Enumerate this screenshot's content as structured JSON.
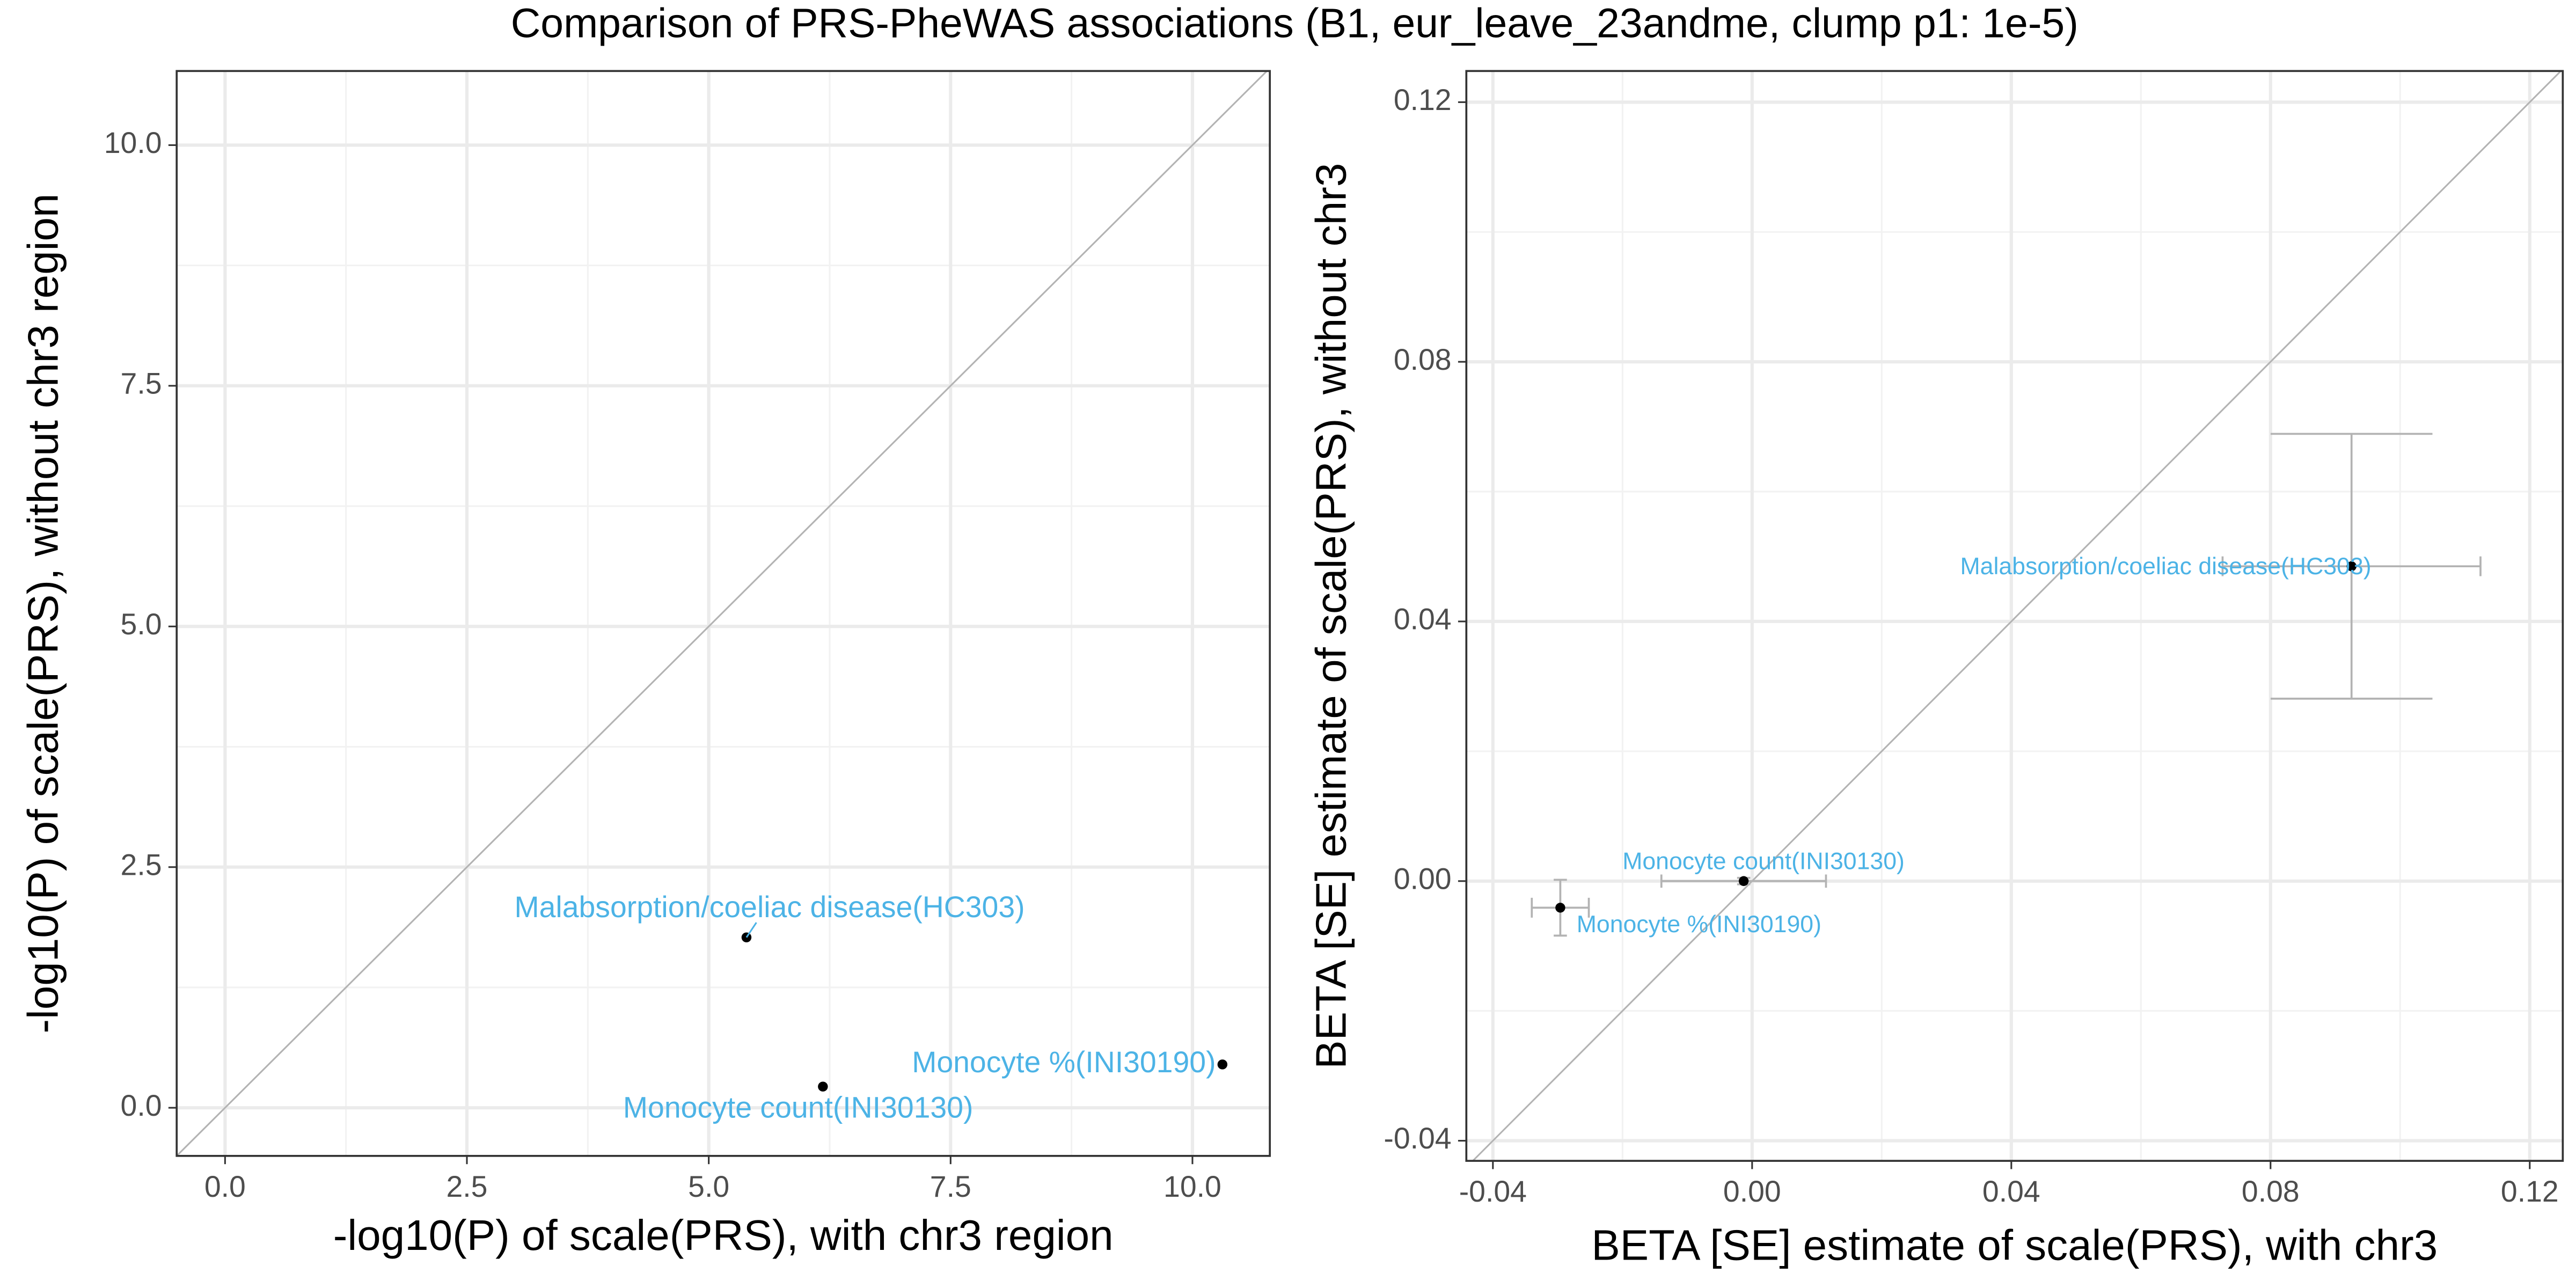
{
  "title": "Comparison of PRS-PheWAS associations (B1, eur_leave_23andme, clump p1: 1e-5)",
  "chart_data": [
    {
      "type": "scatter",
      "x_label": "-log10(P) of scale(PRS), with chr3 region",
      "y_label": "-log10(P) of scale(PRS), without chr3 region",
      "labels": [
        "Malabsorption/coeliac disease(HC303)",
        "Monocyte count(INI30130)",
        "Monocyte %(INI30190)"
      ],
      "x": [
        5.39,
        6.18,
        10.31
      ],
      "y": [
        1.77,
        0.22,
        0.45
      ],
      "point_color": "#000000",
      "label_color": "#4cb3e6",
      "xlim": [
        -0.5,
        10.8
      ],
      "ylim": [
        -0.5,
        10.77
      ],
      "xticks": [
        {
          "value": 0,
          "label": "0.0"
        },
        {
          "value": 2.5,
          "label": "2.5"
        },
        {
          "value": 5,
          "label": "5.0"
        },
        {
          "value": 7.5,
          "label": "7.5"
        },
        {
          "value": 10,
          "label": "10.0"
        }
      ],
      "yticks": [
        {
          "value": 0,
          "label": "0.0"
        },
        {
          "value": 2.5,
          "label": "2.5"
        },
        {
          "value": 5,
          "label": "5.0"
        },
        {
          "value": 7.5,
          "label": "7.5"
        },
        {
          "value": 10,
          "label": "10.0"
        }
      ],
      "grid": true,
      "diagonal": true
    },
    {
      "type": "scatter",
      "x_label": "BETA [SE] estimate of scale(PRS), with chr3",
      "y_label": "BETA [SE] estimate of scale(PRS), without chr3",
      "labels": [
        "Malabsorption/coeliac disease(HC303)",
        "Monocyte count(INI30130)",
        "Monocyte %(INI30190)"
      ],
      "x": [
        0.0925,
        -0.0013,
        -0.0296
      ],
      "y": [
        0.0485,
        0,
        -0.0041
      ],
      "x_err": [
        0.0199,
        0.0127,
        0.0044
      ],
      "y_err": [
        0.0204,
        0.0005,
        0.0043
      ],
      "point_color": "#000000",
      "label_color": "#4cb3e6",
      "error_color": "#b3b3b3",
      "xlim": [
        -0.0441,
        0.1251
      ],
      "ylim": [
        -0.0431,
        0.1248
      ],
      "xticks": [
        -0.04,
        {
          "value": 0,
          "label": "0.00"
        },
        0.04,
        0.08,
        0.12
      ],
      "yticks": [
        -0.04,
        {
          "value": 0,
          "label": "0.00"
        },
        0.04,
        0.08,
        0.12
      ],
      "grid": true,
      "diagonal": true
    }
  ]
}
